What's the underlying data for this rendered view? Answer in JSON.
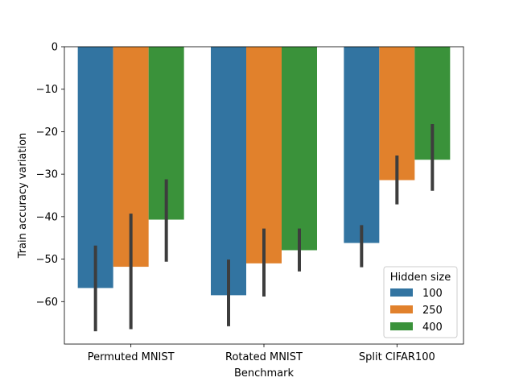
{
  "chart_data": {
    "type": "bar",
    "title": "",
    "xlabel": "Benchmark",
    "ylabel": "Train accuracy variation",
    "categories": [
      "Permuted MNIST",
      "Rotated MNIST",
      "Split CIFAR100"
    ],
    "ylim": [
      -70,
      0
    ],
    "yticks": [
      0,
      -10,
      -20,
      -30,
      -40,
      -50,
      -60
    ],
    "ytick_labels": [
      "0",
      "−10",
      "−20",
      "−30",
      "−40",
      "−50",
      "−60"
    ],
    "grid": false,
    "legend": {
      "title": "Hidden size",
      "placement": "bottom-right"
    },
    "series": [
      {
        "name": "100",
        "color": "#3274a1",
        "values": [
          -56.8,
          -58.5,
          -46.2
        ],
        "err_low": [
          -67.0,
          -65.8,
          -51.9
        ],
        "err_high": [
          -46.8,
          -50.1,
          -42.0
        ]
      },
      {
        "name": "250",
        "color": "#e1812c",
        "values": [
          -51.8,
          -51.0,
          -31.4
        ],
        "err_low": [
          -66.5,
          -58.8,
          -37.1
        ],
        "err_high": [
          -39.3,
          -42.8,
          -25.6
        ]
      },
      {
        "name": "400",
        "color": "#3a923a",
        "values": [
          -40.7,
          -47.9,
          -26.6
        ],
        "err_low": [
          -50.6,
          -52.9,
          -33.9
        ],
        "err_high": [
          -31.2,
          -42.8,
          -18.2
        ]
      }
    ]
  }
}
